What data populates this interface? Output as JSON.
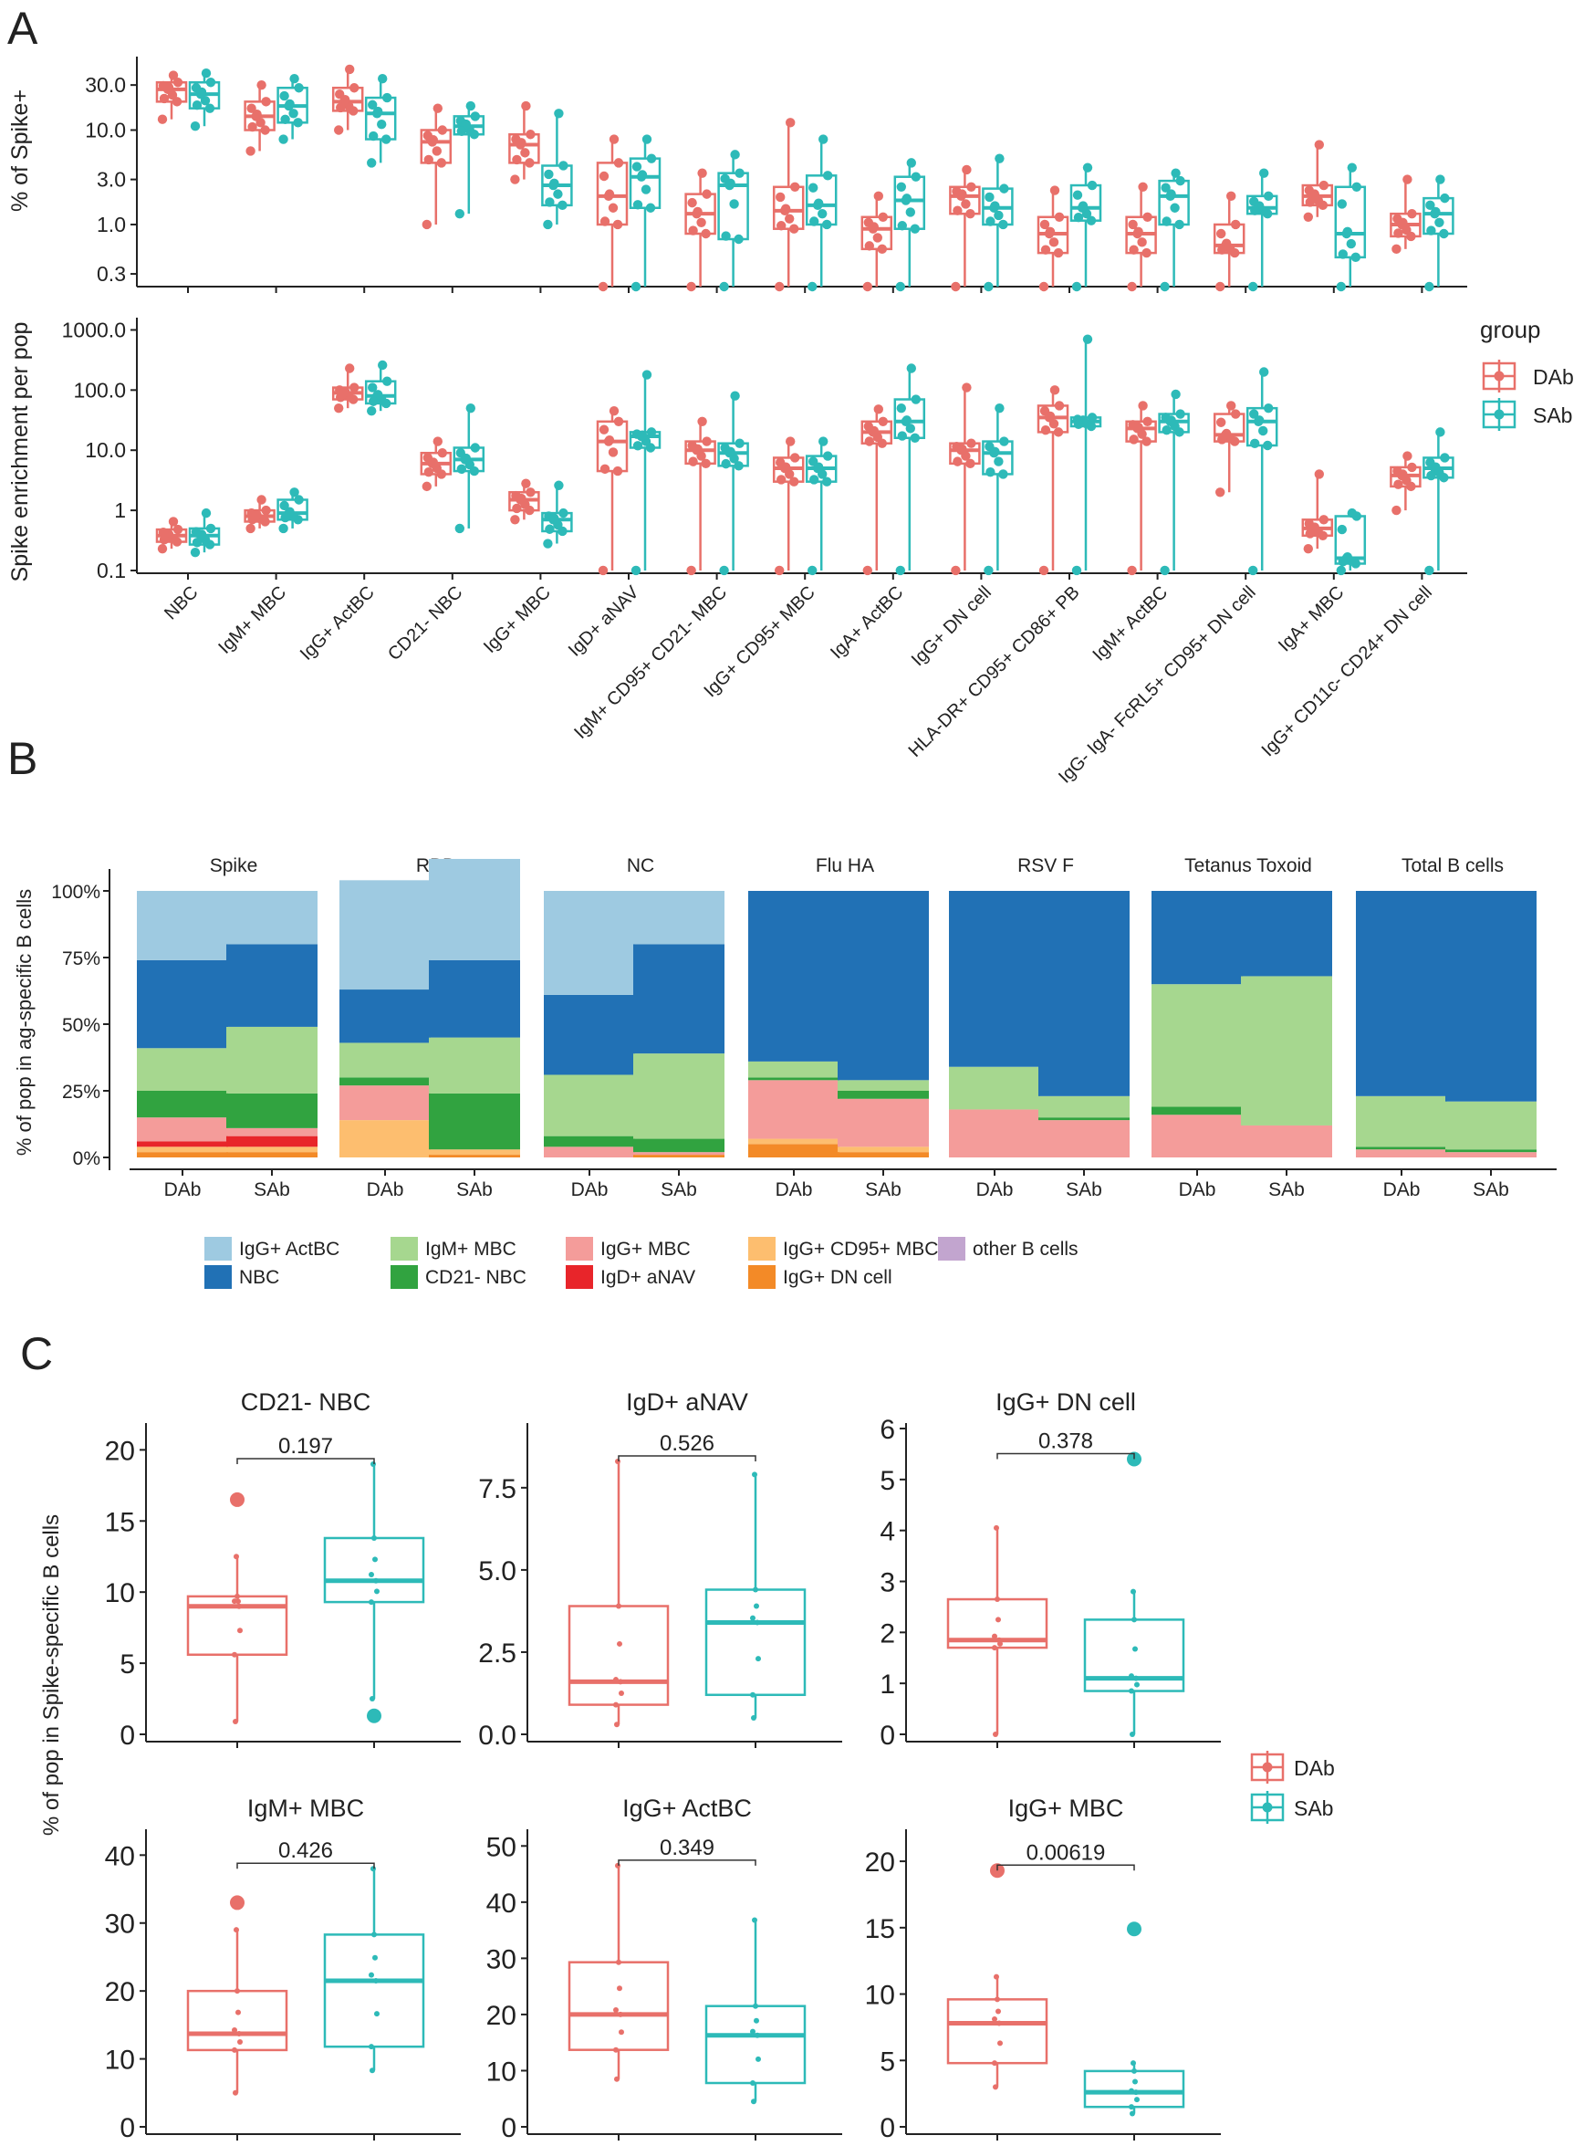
{
  "panel_letters": [
    "A",
    "B",
    "C"
  ],
  "colors": {
    "dab": "#E8706A",
    "sab": "#2DBAB8",
    "stack": {
      "IgG+ ActBC": "#9ECAE1",
      "NBC": "#2171B5",
      "IgM+ MBC": "#A6D78F",
      "CD21- NBC": "#31A340",
      "IgG+ MBC": "#F49C9A",
      "IgD+ aNAV": "#E8252A",
      "IgG+ CD95+ MBC": "#FDBE6F",
      "IgG+ DN cell": "#F38A27",
      "other B cells": "#C2A5CF"
    }
  },
  "chart_data": [
    {
      "id": "A-top",
      "type": "box",
      "scale": "log",
      "ylabel": "% of Spike+",
      "yticks": [
        "30.0",
        "10.0",
        "3.0",
        "1.0",
        "0.3"
      ],
      "ytick_values": [
        30,
        10,
        3,
        1,
        0.3
      ],
      "ylim": [
        0.22,
        60
      ],
      "groups": [
        "DAb",
        "SAb"
      ],
      "categories": [
        "NBC",
        "IgM+ MBC",
        "IgG+ ActBC",
        "CD21- NBC",
        "IgG+ MBC",
        "IgD+ aNAV",
        "IgM+ CD95+ CD21- MBC",
        "IgG+ CD95+ MBC",
        "IgA+ ActBC",
        "IgG+ DN cell",
        "HLA-DR+ CD95+ CD86+ PB",
        "IgM+ ActBC",
        "IgG- IgA- FcRL5+ CD95+ DN cell",
        "IgA+ MBC",
        "IgG+ CD11c- CD24+ DN cell"
      ],
      "boxes": [
        [
          [
            13,
            20,
            27,
            32,
            38
          ],
          [
            11,
            17,
            24,
            32,
            40
          ]
        ],
        [
          [
            6,
            10,
            14,
            20,
            30
          ],
          [
            8,
            12,
            18,
            28,
            35
          ]
        ],
        [
          [
            10,
            16,
            20,
            28,
            44
          ],
          [
            4.5,
            8,
            15,
            22,
            35
          ]
        ],
        [
          [
            1,
            4.5,
            7.5,
            10,
            17
          ],
          [
            1.3,
            9,
            11,
            14,
            18
          ]
        ],
        [
          [
            3,
            4.5,
            7,
            9,
            18
          ],
          [
            1,
            1.6,
            2.6,
            4.2,
            15
          ]
        ],
        [
          [
            0.22,
            1,
            2,
            4.5,
            8
          ],
          [
            0.22,
            1.5,
            3.2,
            5,
            8
          ]
        ],
        [
          [
            0.22,
            0.8,
            1.3,
            2.1,
            3.5
          ],
          [
            0.22,
            0.7,
            2.6,
            3.5,
            5.5
          ]
        ],
        [
          [
            0.22,
            0.9,
            1.4,
            2.5,
            12
          ],
          [
            0.22,
            1,
            1.6,
            3.3,
            8
          ]
        ],
        [
          [
            0.22,
            0.55,
            0.9,
            1.2,
            2
          ],
          [
            0.22,
            0.9,
            1.8,
            3.2,
            4.5
          ]
        ],
        [
          [
            0.22,
            1.3,
            2,
            2.5,
            3.8
          ],
          [
            0.22,
            1,
            1.5,
            2.4,
            5
          ]
        ],
        [
          [
            0.22,
            0.5,
            0.8,
            1.2,
            2.3
          ],
          [
            0.22,
            1.1,
            1.5,
            2.6,
            4
          ]
        ],
        [
          [
            0.22,
            0.5,
            0.8,
            1.2,
            2.5
          ],
          [
            0.22,
            1,
            2,
            2.9,
            3.5
          ]
        ],
        [
          [
            0.22,
            0.5,
            0.6,
            1,
            2
          ],
          [
            0.22,
            1.3,
            1.5,
            2,
            3.5
          ]
        ],
        [
          [
            1.2,
            1.6,
            2,
            2.6,
            7
          ],
          [
            0.22,
            0.45,
            0.8,
            2.5,
            4
          ]
        ],
        [
          [
            0.55,
            0.75,
            1,
            1.3,
            3
          ],
          [
            0.22,
            0.8,
            1.3,
            1.9,
            3
          ]
        ]
      ]
    },
    {
      "id": "A-bottom",
      "type": "box",
      "scale": "log",
      "ylabel": "Spike enrichment per pop",
      "yticks": [
        "1000.0",
        "100.0",
        "10.0",
        "1",
        "0.1"
      ],
      "ytick_values": [
        1000,
        100,
        10,
        1,
        0.1
      ],
      "ylim": [
        0.09,
        1600
      ],
      "legend_title": "group",
      "boxes": [
        [
          [
            0.23,
            0.3,
            0.38,
            0.48,
            0.65
          ],
          [
            0.2,
            0.27,
            0.38,
            0.5,
            0.9
          ]
        ],
        [
          [
            0.5,
            0.65,
            0.8,
            1,
            1.5
          ],
          [
            0.5,
            0.7,
            0.9,
            1.5,
            2
          ]
        ],
        [
          [
            50,
            70,
            90,
            110,
            230
          ],
          [
            45,
            60,
            80,
            140,
            260
          ]
        ],
        [
          [
            2.5,
            4,
            6,
            9,
            14
          ],
          [
            0.5,
            4.5,
            7,
            11,
            50
          ]
        ],
        [
          [
            0.7,
            1,
            1.5,
            2,
            2.8
          ],
          [
            0.28,
            0.45,
            0.7,
            0.9,
            2.6
          ]
        ],
        [
          [
            0.1,
            4.5,
            14,
            30,
            45
          ],
          [
            0.1,
            11,
            17,
            20,
            180
          ]
        ],
        [
          [
            0.1,
            6,
            10,
            14,
            30
          ],
          [
            0.1,
            5.5,
            9,
            13,
            80
          ]
        ],
        [
          [
            0.1,
            3,
            5,
            7.5,
            14
          ],
          [
            0.1,
            3,
            5,
            8,
            14
          ]
        ],
        [
          [
            0.1,
            13,
            20,
            30,
            48
          ],
          [
            0.1,
            16,
            30,
            70,
            230
          ]
        ],
        [
          [
            0.1,
            6,
            10,
            13,
            110
          ],
          [
            0.1,
            4,
            9,
            14,
            50
          ]
        ],
        [
          [
            0.1,
            20,
            35,
            55,
            100
          ],
          [
            0.1,
            25,
            30,
            35,
            700
          ]
        ],
        [
          [
            0.1,
            14,
            23,
            30,
            55
          ],
          [
            0.1,
            20,
            30,
            40,
            85
          ]
        ],
        [
          [
            2,
            14,
            18,
            40,
            55
          ],
          [
            0.1,
            12,
            30,
            50,
            200
          ]
        ],
        [
          [
            0.23,
            0.38,
            0.5,
            0.7,
            4
          ],
          [
            0.1,
            0.13,
            0.16,
            0.8,
            0.9
          ]
        ],
        [
          [
            1,
            2.5,
            3.8,
            5.2,
            8
          ],
          [
            0.1,
            3.5,
            5,
            7.5,
            20
          ]
        ]
      ]
    },
    {
      "id": "B",
      "type": "stacked_bar",
      "ylabel": "% of pop in ag-specific B cells",
      "yticks": [
        "100%",
        "75%",
        "50%",
        "25%",
        "0%"
      ],
      "ytick_values": [
        100,
        75,
        50,
        25,
        0
      ],
      "facets": [
        "Spike",
        "RBD",
        "NC",
        "Flu HA",
        "RSV F",
        "Tetanus Toxoid",
        "Total B cells"
      ],
      "xlabels": [
        "DAb",
        "SAb"
      ],
      "legend_order": [
        "IgG+ ActBC",
        "IgM+ MBC",
        "IgG+ MBC",
        "IgG+ CD95+ MBC",
        "other B cells",
        "NBC",
        "CD21- NBC",
        "IgD+ aNAV",
        "IgG+ DN cell"
      ],
      "stack_order": [
        "IgG+ DN cell",
        "IgG+ CD95+ MBC",
        "IgD+ aNAV",
        "IgG+ MBC",
        "CD21- NBC",
        "IgM+ MBC",
        "NBC",
        "IgG+ ActBC"
      ],
      "bars": [
        [
          [
            2,
            2,
            2,
            9,
            10,
            16,
            33,
            26
          ],
          [
            2,
            2,
            4,
            3,
            13,
            25,
            31,
            20
          ]
        ],
        [
          [
            0,
            14,
            0,
            13,
            3,
            13,
            20,
            41
          ],
          [
            1,
            2,
            0,
            0,
            21,
            21,
            29,
            38
          ]
        ],
        [
          [
            0,
            0,
            0,
            4,
            4,
            23,
            30,
            39
          ],
          [
            1,
            0,
            0,
            1,
            5,
            32,
            41,
            20
          ]
        ],
        [
          [
            5,
            2,
            0,
            22,
            1,
            6,
            64,
            0
          ],
          [
            2,
            2,
            0,
            18,
            3,
            4,
            71,
            0
          ]
        ],
        [
          [
            0,
            0,
            0,
            18,
            0,
            16,
            66,
            0
          ],
          [
            0,
            0,
            0,
            14,
            1,
            8,
            77,
            0
          ]
        ],
        [
          [
            0,
            0,
            0,
            16,
            3,
            46,
            35,
            0
          ],
          [
            0,
            0,
            0,
            12,
            0,
            56,
            32,
            0
          ]
        ],
        [
          [
            0,
            0,
            0,
            3,
            1,
            19,
            77,
            0
          ],
          [
            0,
            0,
            0,
            2,
            1,
            18,
            79,
            0
          ]
        ]
      ]
    },
    {
      "id": "C",
      "type": "box",
      "scale": "linear",
      "ylabel": "% of pop in Spike-specific B cells",
      "panels": [
        {
          "title": "CD21- NBC",
          "p": "0.197",
          "ylim": [
            0,
            21.5
          ],
          "yticks": [
            0,
            5,
            10,
            15,
            20
          ],
          "ytick_labels": [
            "0",
            "5",
            "10",
            "15",
            "20"
          ],
          "dab": [
            0.9,
            5.6,
            9,
            9.7,
            12.5,
            16.5
          ],
          "sab": [
            2.5,
            9.3,
            10.8,
            13.8,
            19,
            1.3
          ]
        },
        {
          "title": "IgD+ aNAV",
          "p": "0.526",
          "ylim": [
            0,
            9.3
          ],
          "yticks": [
            0,
            2.5,
            5,
            7.5
          ],
          "ytick_labels": [
            "0.0",
            "2.5",
            "5.0",
            "7.5"
          ],
          "dab": [
            0.3,
            0.9,
            1.6,
            3.9,
            8.3,
            null
          ],
          "sab": [
            0.5,
            1.2,
            3.4,
            4.4,
            7.9,
            null
          ]
        },
        {
          "title": "IgG+ DN cell",
          "p": "0.378",
          "ylim": [
            0,
            6
          ],
          "yticks": [
            0,
            1,
            2,
            3,
            4,
            5,
            6
          ],
          "ytick_labels": [
            "0",
            "1",
            "2",
            "3",
            "4",
            "5",
            "6"
          ],
          "dab": [
            0,
            1.7,
            1.85,
            2.65,
            4.05,
            null
          ],
          "sab": [
            0,
            0.85,
            1.1,
            2.25,
            2.8,
            5.4
          ]
        },
        {
          "title": "IgM+ MBC",
          "p": "0.426",
          "ylim": [
            0,
            43
          ],
          "yticks": [
            0,
            10,
            20,
            30,
            40
          ],
          "ytick_labels": [
            "0",
            "10",
            "20",
            "30",
            "40"
          ],
          "dab": [
            5,
            11.3,
            13.7,
            20,
            29,
            33
          ],
          "sab": [
            8.3,
            11.8,
            21.5,
            28.3,
            38,
            null
          ]
        },
        {
          "title": "IgG+ ActBC",
          "p": "0.349",
          "ylim": [
            0,
            52
          ],
          "yticks": [
            0,
            10,
            20,
            30,
            40,
            50
          ],
          "ytick_labels": [
            "0",
            "10",
            "20",
            "30",
            "40",
            "50"
          ],
          "dab": [
            8.5,
            13.7,
            20,
            29.3,
            46.5,
            null
          ],
          "sab": [
            4.5,
            7.8,
            16.3,
            21.5,
            36.8,
            null
          ]
        },
        {
          "title": "IgG+ MBC",
          "p": "0.00619",
          "ylim": [
            0,
            22
          ],
          "yticks": [
            0,
            5,
            10,
            15,
            20
          ],
          "ytick_labels": [
            "0",
            "5",
            "10",
            "15",
            "20"
          ],
          "dab": [
            3,
            4.8,
            7.8,
            9.6,
            11.3,
            19.3
          ],
          "sab": [
            1,
            1.5,
            2.6,
            4.2,
            4.8,
            14.9
          ]
        }
      ]
    }
  ]
}
